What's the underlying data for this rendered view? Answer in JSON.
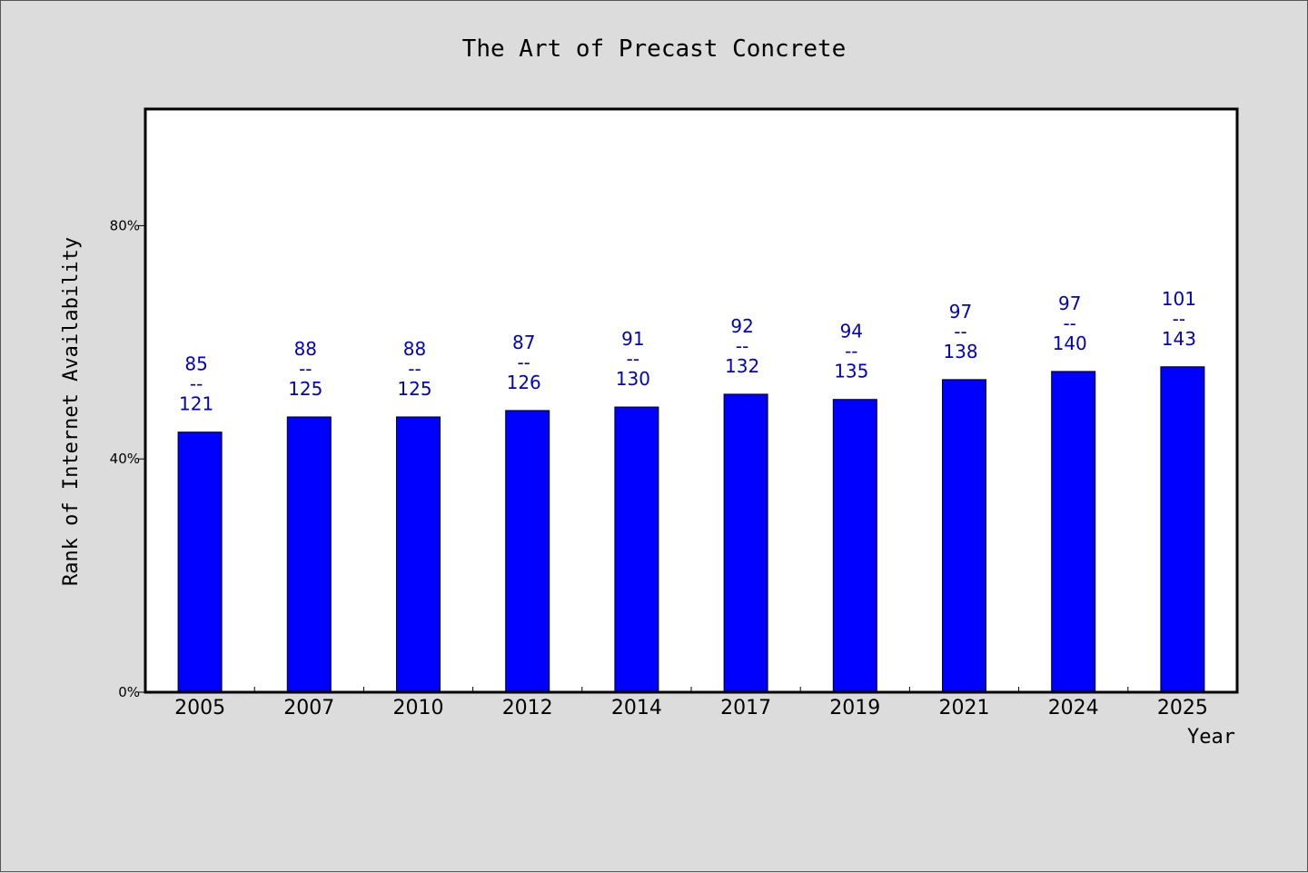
{
  "chart_data": {
    "type": "bar",
    "title": "The Art of Precast Concrete",
    "xlabel": "Year",
    "ylabel": "Rank of Internet Availability",
    "categories": [
      "2005",
      "2007",
      "2010",
      "2012",
      "2014",
      "2017",
      "2019",
      "2021",
      "2024",
      "2025"
    ],
    "values": [
      44.6,
      47.2,
      47.2,
      48.3,
      48.9,
      51.1,
      50.2,
      53.6,
      55.0,
      55.8
    ],
    "data_labels": [
      {
        "top": "85",
        "sep": "--",
        "bottom": "121"
      },
      {
        "top": "88",
        "sep": "--",
        "bottom": "125"
      },
      {
        "top": "88",
        "sep": "--",
        "bottom": "125"
      },
      {
        "top": "87",
        "sep": "--",
        "bottom": "126"
      },
      {
        "top": "91",
        "sep": "--",
        "bottom": "130"
      },
      {
        "top": "92",
        "sep": "--",
        "bottom": "132"
      },
      {
        "top": "94",
        "sep": "--",
        "bottom": "135"
      },
      {
        "top": "97",
        "sep": "--",
        "bottom": "138"
      },
      {
        "top": "97",
        "sep": "--",
        "bottom": "140"
      },
      {
        "top": "101",
        "sep": "--",
        "bottom": "143"
      }
    ],
    "ylim": [
      0,
      100
    ],
    "yticks": [
      0,
      40,
      80
    ],
    "ytick_labels": [
      "0%",
      "40%",
      "80%"
    ],
    "grid": false,
    "colors": {
      "bar": "#0000ff",
      "bar_edge": "#000000",
      "label": "#0000cc",
      "plot_bg": "#ffffff",
      "page_bg": "#dcdcdc"
    }
  }
}
